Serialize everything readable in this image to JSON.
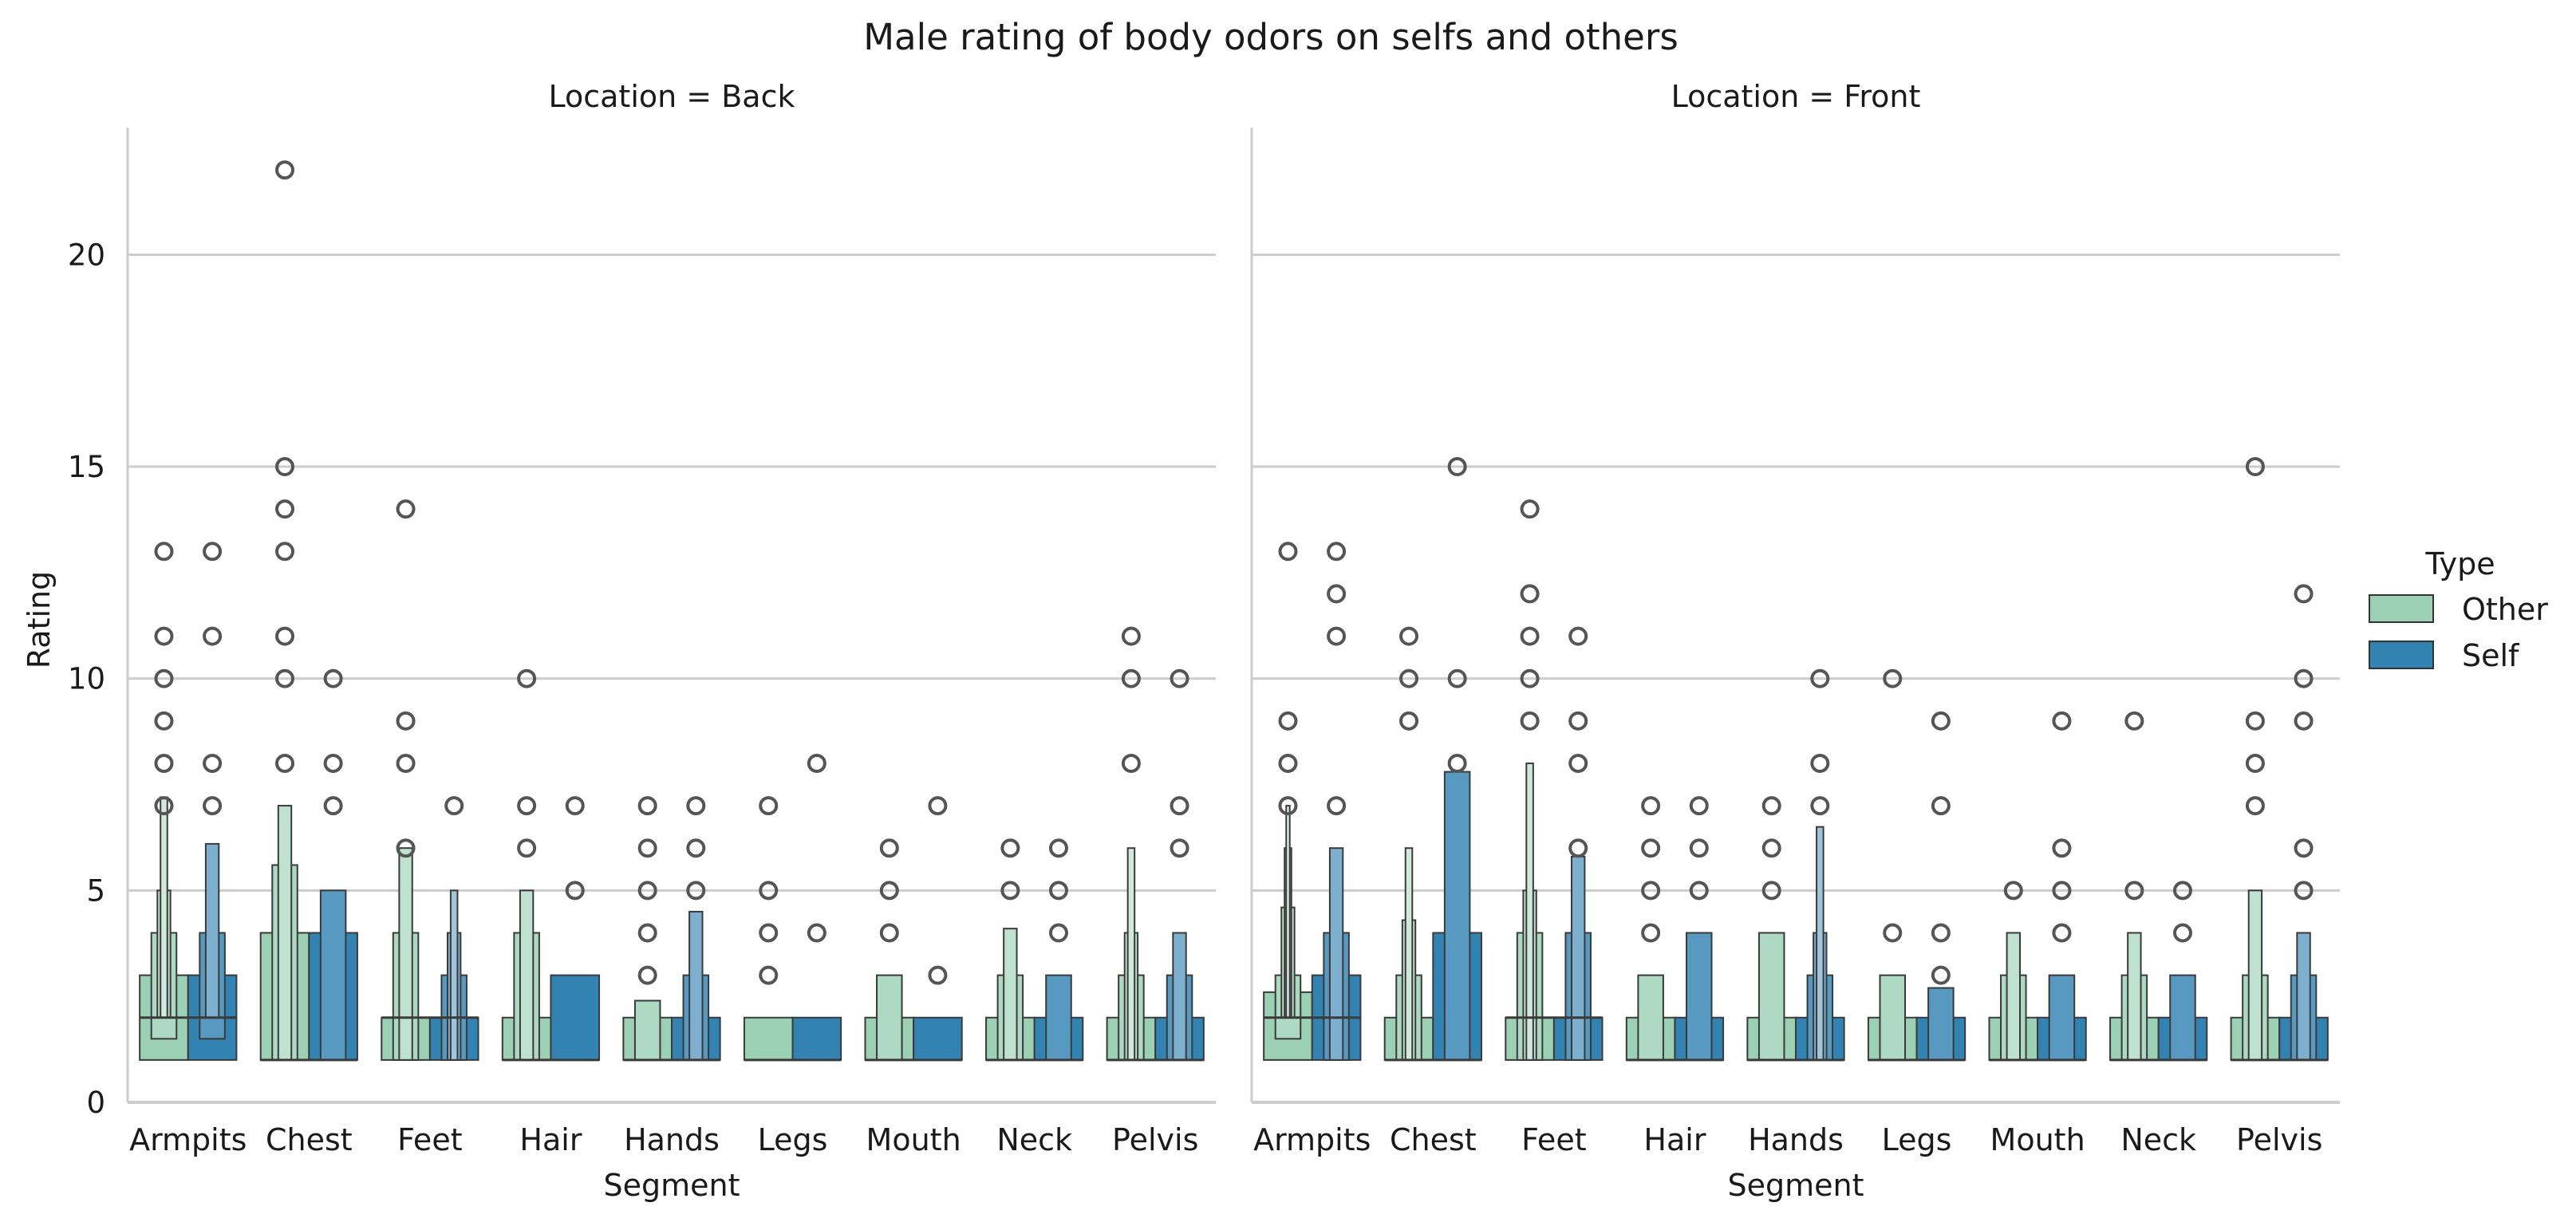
{
  "title": "Male rating of body odors on selfs and others",
  "chart_data": {
    "type": "boxen",
    "title": "Male rating of body odors on selfs and others",
    "xlabel": "Segment",
    "ylabel": "Rating",
    "ylim": [
      0,
      23
    ],
    "yticks": [
      0,
      5,
      10,
      15,
      20
    ],
    "grid": "horizontal",
    "categories": [
      "Armpits",
      "Chest",
      "Feet",
      "Hair",
      "Hands",
      "Legs",
      "Mouth",
      "Neck",
      "Pelvis"
    ],
    "hue_title": "Type",
    "legend_position": "right",
    "series": [
      {
        "name": "Other",
        "color": "#9bd0b4"
      },
      {
        "name": "Self",
        "color": "#3283b2"
      }
    ],
    "panels": [
      {
        "title": "Location = Back",
        "boxes": {
          "Other": [
            {
              "median": 2,
              "levels": [
                [
                  1,
                  3
                ],
                [
                  1.5,
                  4
                ],
                [
                  2,
                  5
                ],
                [
                  2,
                  7.2
                ]
              ],
              "outliers": [
                7,
                8,
                9,
                10,
                11,
                13
              ]
            },
            {
              "median": 1,
              "levels": [
                [
                  1,
                  4
                ],
                [
                  1,
                  5.6
                ],
                [
                  1,
                  7
                ]
              ],
              "outliers": [
                8,
                10,
                11,
                13,
                14,
                15,
                22
              ]
            },
            {
              "median": 2,
              "levels": [
                [
                  1,
                  2
                ],
                [
                  1,
                  4
                ],
                [
                  1,
                  6
                ]
              ],
              "outliers": [
                6,
                8,
                9,
                14
              ]
            },
            {
              "median": 1,
              "levels": [
                [
                  1,
                  2
                ],
                [
                  1,
                  4
                ],
                [
                  1,
                  5
                ]
              ],
              "outliers": [
                6,
                7,
                10
              ]
            },
            {
              "median": 1,
              "levels": [
                [
                  1,
                  2
                ],
                [
                  1,
                  2.4
                ]
              ],
              "outliers": [
                3,
                4,
                5,
                6,
                7
              ]
            },
            {
              "median": 1,
              "levels": [
                [
                  1,
                  2
                ]
              ],
              "outliers": [
                3,
                4,
                5,
                7
              ]
            },
            {
              "median": 1,
              "levels": [
                [
                  1,
                  2
                ],
                [
                  1,
                  3
                ]
              ],
              "outliers": [
                4,
                5,
                6
              ]
            },
            {
              "median": 1,
              "levels": [
                [
                  1,
                  2
                ],
                [
                  1,
                  3
                ],
                [
                  1,
                  4.1
                ]
              ],
              "outliers": [
                5,
                6
              ]
            },
            {
              "median": 1,
              "levels": [
                [
                  1,
                  2
                ],
                [
                  1,
                  3
                ],
                [
                  1,
                  4
                ],
                [
                  1,
                  6
                ]
              ],
              "outliers": [
                8,
                10,
                11
              ]
            }
          ],
          "Self": [
            {
              "median": 2,
              "levels": [
                [
                  1,
                  3
                ],
                [
                  1.5,
                  4
                ],
                [
                  2,
                  6.1
                ]
              ],
              "outliers": [
                7,
                8,
                11,
                13
              ]
            },
            {
              "median": 1,
              "levels": [
                [
                  1,
                  4
                ],
                [
                  1,
                  5
                ]
              ],
              "outliers": [
                7,
                8,
                10
              ]
            },
            {
              "median": 2,
              "levels": [
                [
                  1,
                  2
                ],
                [
                  1,
                  3
                ],
                [
                  1,
                  4
                ],
                [
                  1,
                  5
                ]
              ],
              "outliers": [
                7
              ]
            },
            {
              "median": 1,
              "levels": [
                [
                  1,
                  3
                ]
              ],
              "outliers": [
                5,
                7
              ]
            },
            {
              "median": 1,
              "levels": [
                [
                  1,
                  2
                ],
                [
                  1,
                  3
                ],
                [
                  1,
                  4.5
                ]
              ],
              "outliers": [
                5,
                6,
                7
              ]
            },
            {
              "median": 1,
              "levels": [
                [
                  1,
                  2
                ]
              ],
              "outliers": [
                4,
                8
              ]
            },
            {
              "median": 1,
              "levels": [
                [
                  1,
                  2
                ]
              ],
              "outliers": [
                3,
                7
              ]
            },
            {
              "median": 1,
              "levels": [
                [
                  1,
                  2
                ],
                [
                  1,
                  3
                ]
              ],
              "outliers": [
                4,
                5,
                6
              ]
            },
            {
              "median": 1,
              "levels": [
                [
                  1,
                  2
                ],
                [
                  1,
                  3
                ],
                [
                  1,
                  4
                ]
              ],
              "outliers": [
                6,
                7,
                10
              ]
            }
          ]
        }
      },
      {
        "title": "Location = Front",
        "boxes": {
          "Other": [
            {
              "median": 2,
              "levels": [
                [
                  1,
                  2.6
                ],
                [
                  1.5,
                  3
                ],
                [
                  2,
                  4.6
                ],
                [
                  2,
                  6
                ],
                [
                  2,
                  7
                ]
              ],
              "outliers": [
                7,
                8,
                9,
                13
              ]
            },
            {
              "median": 1,
              "levels": [
                [
                  1,
                  2
                ],
                [
                  1,
                  3
                ],
                [
                  1,
                  4.3
                ],
                [
                  1,
                  6
                ]
              ],
              "outliers": [
                9,
                10,
                11
              ]
            },
            {
              "median": 2,
              "levels": [
                [
                  1,
                  2
                ],
                [
                  1,
                  4
                ],
                [
                  1,
                  5
                ],
                [
                  1,
                  8
                ]
              ],
              "outliers": [
                9,
                10,
                11,
                12,
                14
              ]
            },
            {
              "median": 1,
              "levels": [
                [
                  1,
                  2
                ],
                [
                  1,
                  3
                ]
              ],
              "outliers": [
                4,
                5,
                6,
                7
              ]
            },
            {
              "median": 1,
              "levels": [
                [
                  1,
                  2
                ],
                [
                  1,
                  4
                ]
              ],
              "outliers": [
                5,
                6,
                7
              ]
            },
            {
              "median": 1,
              "levels": [
                [
                  1,
                  2
                ],
                [
                  1,
                  3
                ]
              ],
              "outliers": [
                4,
                10
              ]
            },
            {
              "median": 1,
              "levels": [
                [
                  1,
                  2
                ],
                [
                  1,
                  3
                ],
                [
                  1,
                  4
                ]
              ],
              "outliers": [
                5
              ]
            },
            {
              "median": 1,
              "levels": [
                [
                  1,
                  2
                ],
                [
                  1,
                  3
                ],
                [
                  1,
                  4
                ]
              ],
              "outliers": [
                5,
                9
              ]
            },
            {
              "median": 1,
              "levels": [
                [
                  1,
                  2
                ],
                [
                  1,
                  3
                ],
                [
                  1,
                  5
                ]
              ],
              "outliers": [
                7,
                8,
                9,
                15
              ]
            }
          ],
          "Self": [
            {
              "median": 2,
              "levels": [
                [
                  1,
                  3
                ],
                [
                  1,
                  4
                ],
                [
                  1,
                  6
                ]
              ],
              "outliers": [
                7,
                11,
                12,
                13
              ]
            },
            {
              "median": 1,
              "levels": [
                [
                  1,
                  4
                ],
                [
                  1,
                  7.8
                ]
              ],
              "outliers": [
                8,
                10,
                15
              ]
            },
            {
              "median": 2,
              "levels": [
                [
                  1,
                  2
                ],
                [
                  1,
                  4
                ],
                [
                  1,
                  5.8
                ]
              ],
              "outliers": [
                6,
                8,
                9,
                11
              ]
            },
            {
              "median": 1,
              "levels": [
                [
                  1,
                  2
                ],
                [
                  1,
                  4
                ]
              ],
              "outliers": [
                5,
                6,
                7
              ]
            },
            {
              "median": 1,
              "levels": [
                [
                  1,
                  2
                ],
                [
                  1,
                  3
                ],
                [
                  1,
                  4
                ],
                [
                  1,
                  6.5
                ]
              ],
              "outliers": [
                7,
                8,
                10
              ]
            },
            {
              "median": 1,
              "levels": [
                [
                  1,
                  2
                ],
                [
                  1,
                  2.7
                ]
              ],
              "outliers": [
                3,
                4,
                7,
                9
              ]
            },
            {
              "median": 1,
              "levels": [
                [
                  1,
                  2
                ],
                [
                  1,
                  3
                ]
              ],
              "outliers": [
                4,
                5,
                6,
                9
              ]
            },
            {
              "median": 1,
              "levels": [
                [
                  1,
                  2
                ],
                [
                  1,
                  3
                ]
              ],
              "outliers": [
                4,
                5
              ]
            },
            {
              "median": 1,
              "levels": [
                [
                  1,
                  2
                ],
                [
                  1,
                  3
                ],
                [
                  1,
                  4
                ]
              ],
              "outliers": [
                5,
                6,
                9,
                10,
                12
              ]
            }
          ]
        }
      }
    ]
  }
}
